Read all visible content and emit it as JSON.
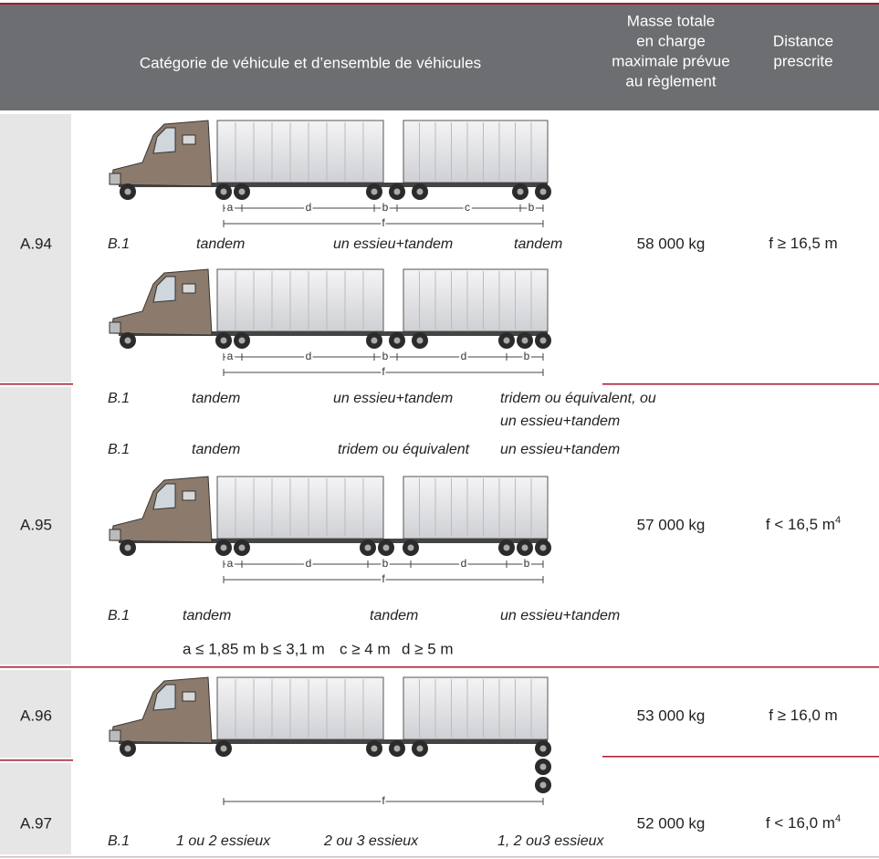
{
  "header": {
    "category": "Catégorie de véhicule et d’ensemble de véhicules",
    "mass": [
      "Masse totale",
      "en charge",
      "maximale prévue",
      "au règlement"
    ],
    "distance": [
      "Distance",
      "prescrite"
    ]
  },
  "rows": [
    {
      "code": "A.94",
      "mass": "58 000 kg",
      "distance": "f ≥ 16,5 m"
    },
    {
      "code": "A.95",
      "mass": "57 000 kg",
      "distance": "f < 16,5 m",
      "note": "4"
    },
    {
      "code": "A.96",
      "mass": "53 000 kg",
      "distance": "f ≥ 16,0 m"
    },
    {
      "code": "A.97",
      "mass": "52 000 kg",
      "distance": "f < 16,0 m",
      "note": "4"
    }
  ],
  "drawings": [
    {
      "dims": [
        "a",
        "d",
        "b",
        "c",
        "b"
      ],
      "overall": "f"
    },
    {
      "dims": [
        "a",
        "d",
        "b",
        "d",
        "b"
      ],
      "overall": "f"
    },
    {
      "dims": [
        "a",
        "d",
        "b",
        "d",
        "b"
      ],
      "overall": "f"
    },
    {
      "overall": "f"
    }
  ],
  "axle_groups": [
    [
      "B.1",
      "tandem",
      "un essieu+tandem",
      "tandem"
    ],
    [
      "B.1",
      "tandem",
      "un essieu+tandem",
      "tridem ou équivalent, ou",
      "un essieu+tandem"
    ],
    [
      "B.1",
      "tandem",
      "tridem ou équivalent",
      "un essieu+tandem"
    ],
    [
      "B.1",
      "tandem",
      "tandem",
      "un essieu+tandem"
    ],
    [
      "B.1",
      "1 ou 2 essieux",
      "2 ou 3 essieux",
      "1, 2 ou3 essieux"
    ]
  ],
  "limits": [
    "a ≤ 1,85 m",
    "b ≤ 3,1 m",
    "c ≥ 4 m",
    "d ≥ 5 m"
  ]
}
